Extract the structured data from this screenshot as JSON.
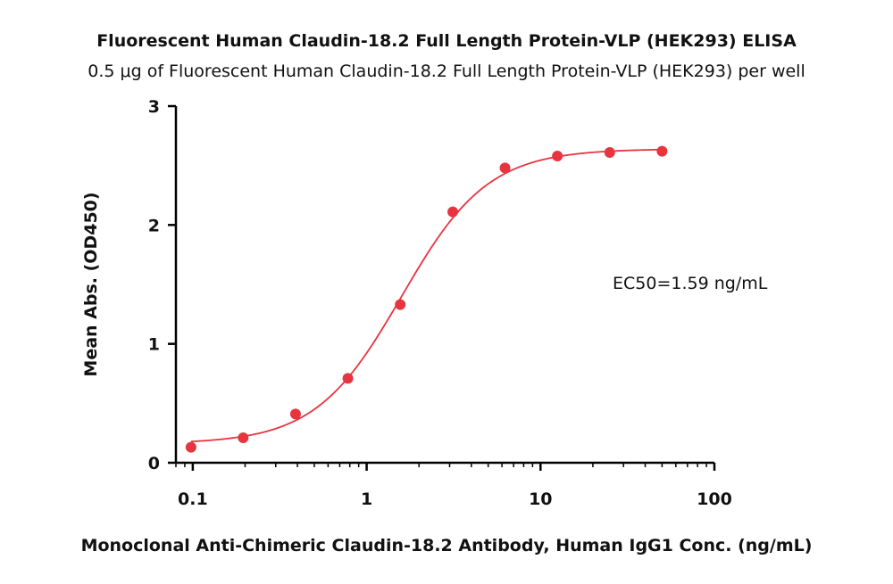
{
  "chart_data": {
    "type": "scatter",
    "title": "Fluorescent Human Claudin-18.2 Full Length Protein-VLP (HEK293) ELISA",
    "subtitle": "0.5 μg of Fluorescent Human Claudin-18.2 Full Length Protein-VLP (HEK293) per well",
    "xlabel": "Monoclonal Anti-Chimeric Claudin-18.2 Antibody, Human IgG1 Conc. (ng/mL)",
    "ylabel": "Mean Abs. (OD450)",
    "x_scale": "log",
    "xlim": [
      0.08,
      100
    ],
    "ylim": [
      0,
      3
    ],
    "x_ticks": [
      0.1,
      1,
      10,
      100
    ],
    "x_tick_labels": [
      "0.1",
      "1",
      "10",
      "100"
    ],
    "y_ticks": [
      0,
      1,
      2,
      3
    ],
    "y_tick_labels": [
      "0",
      "1",
      "2",
      "3"
    ],
    "grid": false,
    "annotation": "EC50=1.59 ng/mL",
    "series": [
      {
        "points": [
          {
            "x": 0.0977,
            "y": 0.13
          },
          {
            "x": 0.195,
            "y": 0.21
          },
          {
            "x": 0.39,
            "y": 0.41
          },
          {
            "x": 0.78,
            "y": 0.71
          },
          {
            "x": 1.56,
            "y": 1.33
          },
          {
            "x": 3.13,
            "y": 2.11
          },
          {
            "x": 6.25,
            "y": 2.48
          },
          {
            "x": 12.5,
            "y": 2.58
          },
          {
            "x": 25,
            "y": 2.61
          },
          {
            "x": 50,
            "y": 2.62
          }
        ],
        "fit": {
          "model": "4PL",
          "bottom": 0.16,
          "top": 2.64,
          "ec50": 1.59,
          "hill": 1.75,
          "range": [
            0.0977,
            50
          ]
        }
      }
    ],
    "colors": {
      "series": "#e8343f",
      "axis": "#000000",
      "text": "#111111"
    }
  }
}
